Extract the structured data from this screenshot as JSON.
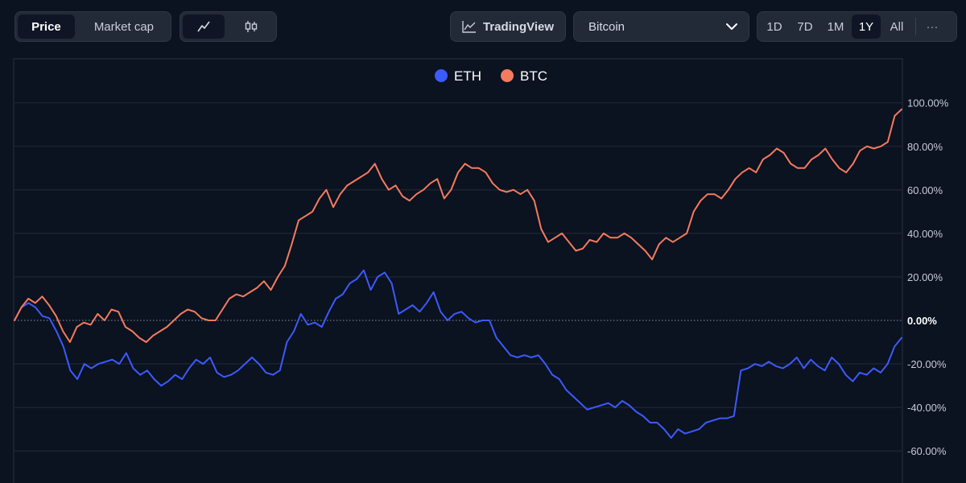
{
  "toolbar": {
    "price_label": "Price",
    "market_cap_label": "Market cap",
    "tradingview_label": "TradingView",
    "coin_selected": "Bitcoin",
    "ranges": [
      "1D",
      "7D",
      "1M",
      "1Y",
      "All"
    ],
    "active_range": "1Y",
    "more_label": "···",
    "icons": [
      "line-chart-icon",
      "candlestick-icon",
      "chart-trend-icon",
      "chevron-down-icon"
    ]
  },
  "chart_data": {
    "type": "line",
    "y_unit": "%",
    "ylim": [
      -67,
      100
    ],
    "y_ticks": [
      "100.00%",
      "80.00%",
      "60.00%",
      "40.00%",
      "20.00%",
      "0.00%",
      "-20.00%",
      "-40.00%",
      "-60.00%"
    ],
    "y_tick_values": [
      100,
      80,
      60,
      40,
      20,
      0,
      -20,
      -40,
      -60
    ],
    "grid": true,
    "legend_position": "top-center",
    "zero_line": "dotted",
    "x_period": "1Y",
    "series": [
      {
        "name": "ETH",
        "color": "#3b5bfd",
        "values": [
          0,
          6,
          8,
          6,
          2,
          1,
          -5,
          -12,
          -23,
          -27,
          -20,
          -22,
          -20,
          -19,
          -18,
          -20,
          -15,
          -22,
          -25,
          -23,
          -27,
          -30,
          -28,
          -25,
          -27,
          -22,
          -18,
          -20,
          -17,
          -24,
          -26,
          -25,
          -23,
          -20,
          -17,
          -20,
          -24,
          -25,
          -23,
          -10,
          -5,
          3,
          -2,
          -1,
          -3,
          4,
          10,
          12,
          17,
          19,
          23,
          14,
          20,
          22,
          17,
          3,
          5,
          7,
          4,
          8,
          13,
          4,
          0,
          3,
          4,
          1,
          -1,
          0,
          0,
          -8,
          -12,
          -16,
          -17,
          -16,
          -17,
          -16,
          -20,
          -25,
          -27,
          -32,
          -35,
          -38,
          -41,
          -40,
          -39,
          -38,
          -40,
          -37,
          -39,
          -42,
          -44,
          -47,
          -47,
          -50,
          -54,
          -50,
          -52,
          -51,
          -50,
          -47,
          -46,
          -45,
          -45,
          -44,
          -23,
          -22,
          -20,
          -21,
          -19,
          -21,
          -22,
          -20,
          -17,
          -22,
          -18,
          -21,
          -23,
          -17,
          -20,
          -25,
          -28,
          -24,
          -25,
          -22,
          -24,
          -20,
          -12,
          -8
        ]
      },
      {
        "name": "BTC",
        "color": "#f57b5e",
        "values": [
          0,
          6,
          10,
          8,
          11,
          7,
          2,
          -5,
          -10,
          -3,
          -1,
          -2,
          3,
          0,
          5,
          4,
          -3,
          -5,
          -8,
          -10,
          -7,
          -5,
          -3,
          0,
          3,
          5,
          4,
          1,
          0,
          0,
          5,
          10,
          12,
          11,
          13,
          15,
          18,
          14,
          20,
          25,
          35,
          46,
          48,
          50,
          56,
          60,
          52,
          58,
          62,
          64,
          66,
          68,
          72,
          65,
          60,
          62,
          57,
          55,
          58,
          60,
          63,
          65,
          56,
          60,
          68,
          72,
          70,
          70,
          68,
          63,
          60,
          59,
          60,
          58,
          60,
          55,
          42,
          36,
          38,
          40,
          36,
          32,
          33,
          37,
          36,
          40,
          38,
          38,
          40,
          38,
          35,
          32,
          28,
          35,
          38,
          36,
          38,
          40,
          50,
          55,
          58,
          58,
          56,
          60,
          65,
          68,
          70,
          68,
          74,
          76,
          79,
          77,
          72,
          70,
          70,
          74,
          76,
          79,
          74,
          70,
          68,
          72,
          78,
          80,
          79,
          80,
          82,
          94,
          97
        ]
      }
    ]
  }
}
